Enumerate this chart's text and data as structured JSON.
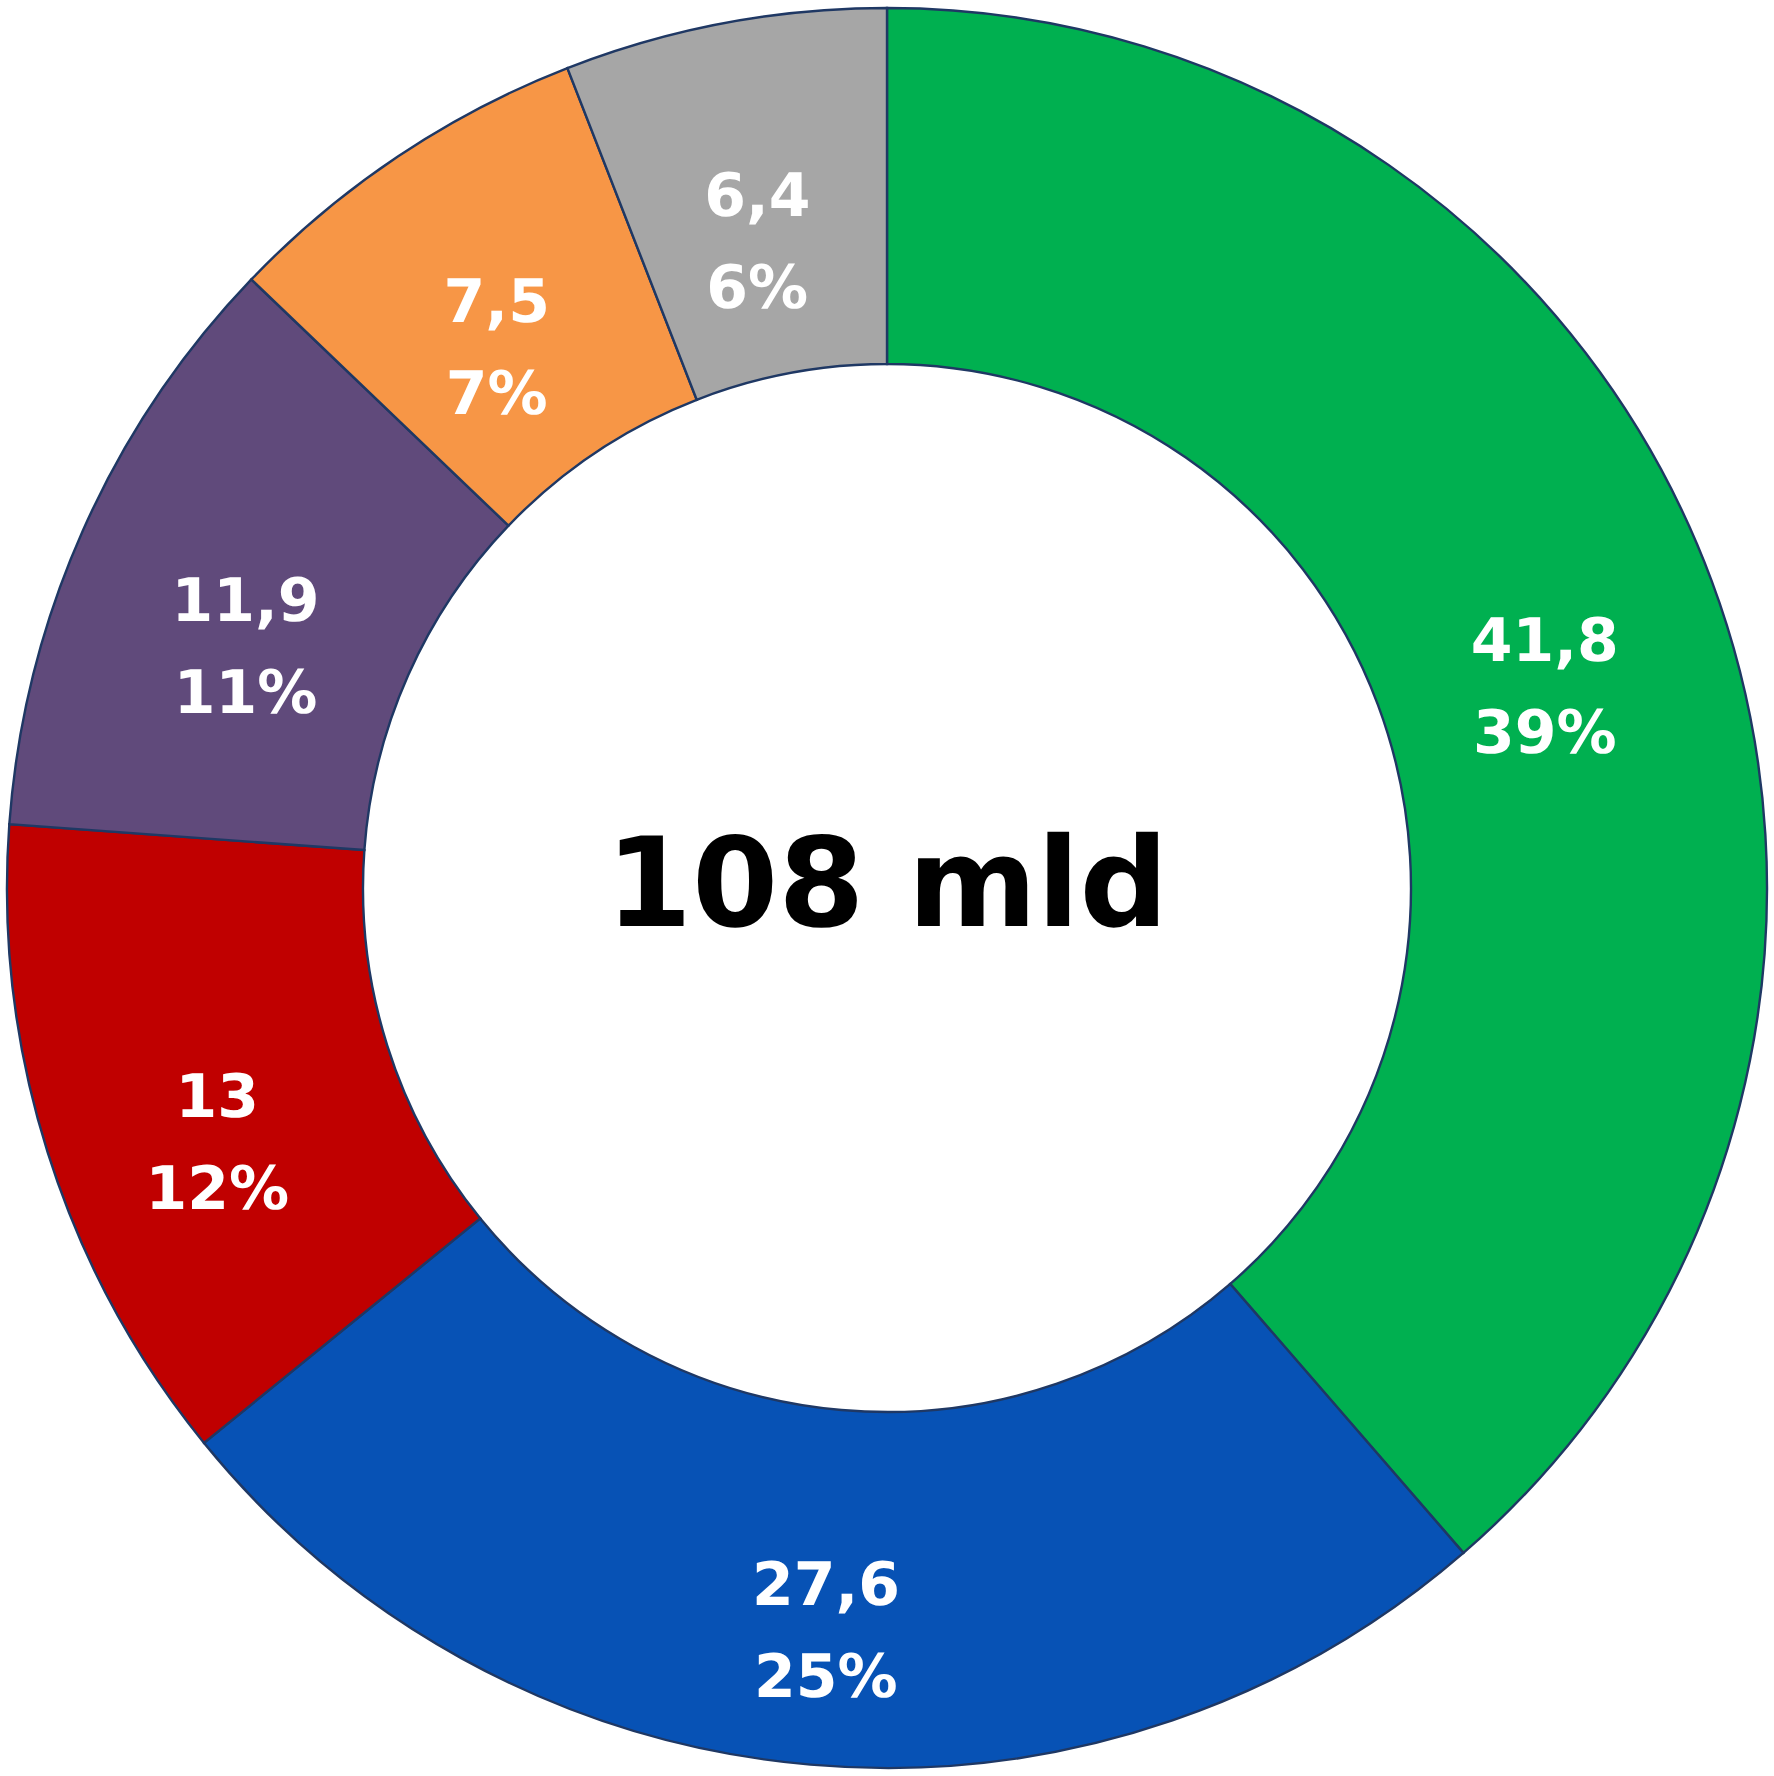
{
  "chart_data": {
    "type": "donut",
    "categories": [
      null,
      null,
      null,
      null,
      null,
      null
    ],
    "values": [
      41.8,
      27.6,
      13,
      11.9,
      7.5,
      6.4
    ],
    "colors": [
      "#00b050",
      "#0752b5",
      "#c00000",
      "#604a7b",
      "#f79646",
      "#a6a6a6"
    ],
    "value_labels": [
      "41,8\n39%",
      "27,6\n25%",
      "13\n12%",
      "11,9\n11%",
      "7,5\n7%",
      "6,4\n6%"
    ],
    "annotations": [
      "108 mld"
    ]
  }
}
